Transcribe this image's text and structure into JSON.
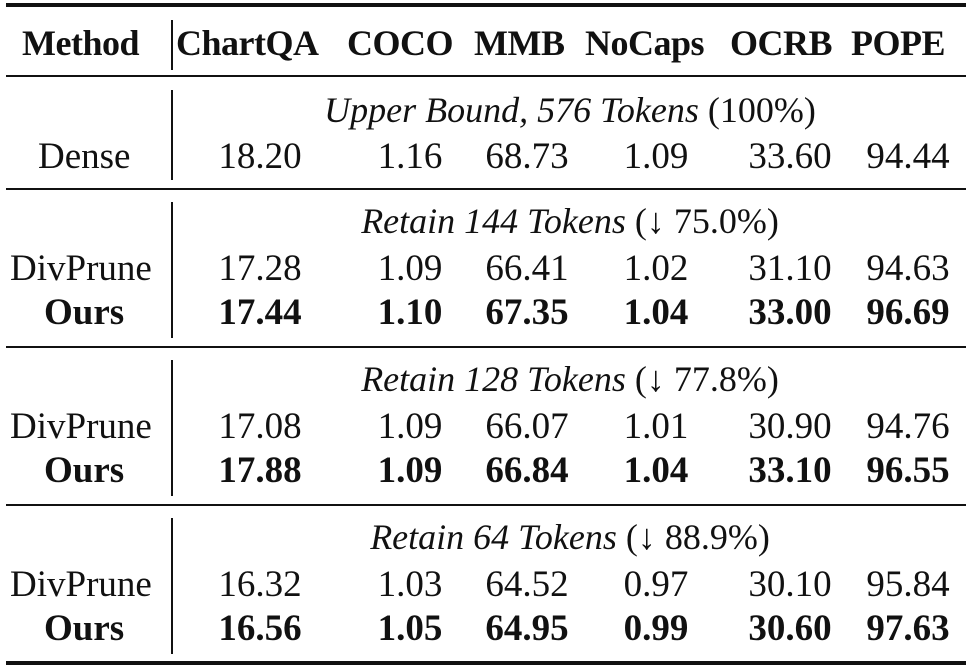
{
  "header": {
    "method": "Method",
    "columns": [
      "ChartQA",
      "COCO",
      "MMB",
      "NoCaps",
      "OCRB",
      "POPE"
    ]
  },
  "groups": [
    {
      "title_italic": "Upper Bound, 576 Tokens",
      "title_suffix": "(100%)",
      "rows": [
        {
          "method": "Dense",
          "bold": false,
          "values": [
            "18.20",
            "1.16",
            "68.73",
            "1.09",
            "33.60",
            "94.44"
          ]
        }
      ]
    },
    {
      "title_italic": "Retain 144 Tokens",
      "title_suffix": "(↓ 75.0%)",
      "rows": [
        {
          "method": "DivPrune",
          "bold": false,
          "values": [
            "17.28",
            "1.09",
            "66.41",
            "1.02",
            "31.10",
            "94.63"
          ]
        },
        {
          "method": "Ours",
          "bold": true,
          "values": [
            "17.44",
            "1.10",
            "67.35",
            "1.04",
            "33.00",
            "96.69"
          ]
        }
      ]
    },
    {
      "title_italic": "Retain 128 Tokens",
      "title_suffix": "(↓ 77.8%)",
      "rows": [
        {
          "method": "DivPrune",
          "bold": false,
          "values": [
            "17.08",
            "1.09",
            "66.07",
            "1.01",
            "30.90",
            "94.76"
          ]
        },
        {
          "method": "Ours",
          "bold": true,
          "values": [
            "17.88",
            "1.09",
            "66.84",
            "1.04",
            "33.10",
            "96.55"
          ]
        }
      ]
    },
    {
      "title_italic": "Retain 64 Tokens",
      "title_suffix": "(↓ 88.9%)",
      "rows": [
        {
          "method": "DivPrune",
          "bold": false,
          "values": [
            "16.32",
            "1.03",
            "64.52",
            "0.97",
            "30.10",
            "95.84"
          ]
        },
        {
          "method": "Ours",
          "bold": true,
          "values": [
            "16.56",
            "1.05",
            "64.95",
            "0.99",
            "30.60",
            "97.63"
          ]
        }
      ]
    }
  ]
}
